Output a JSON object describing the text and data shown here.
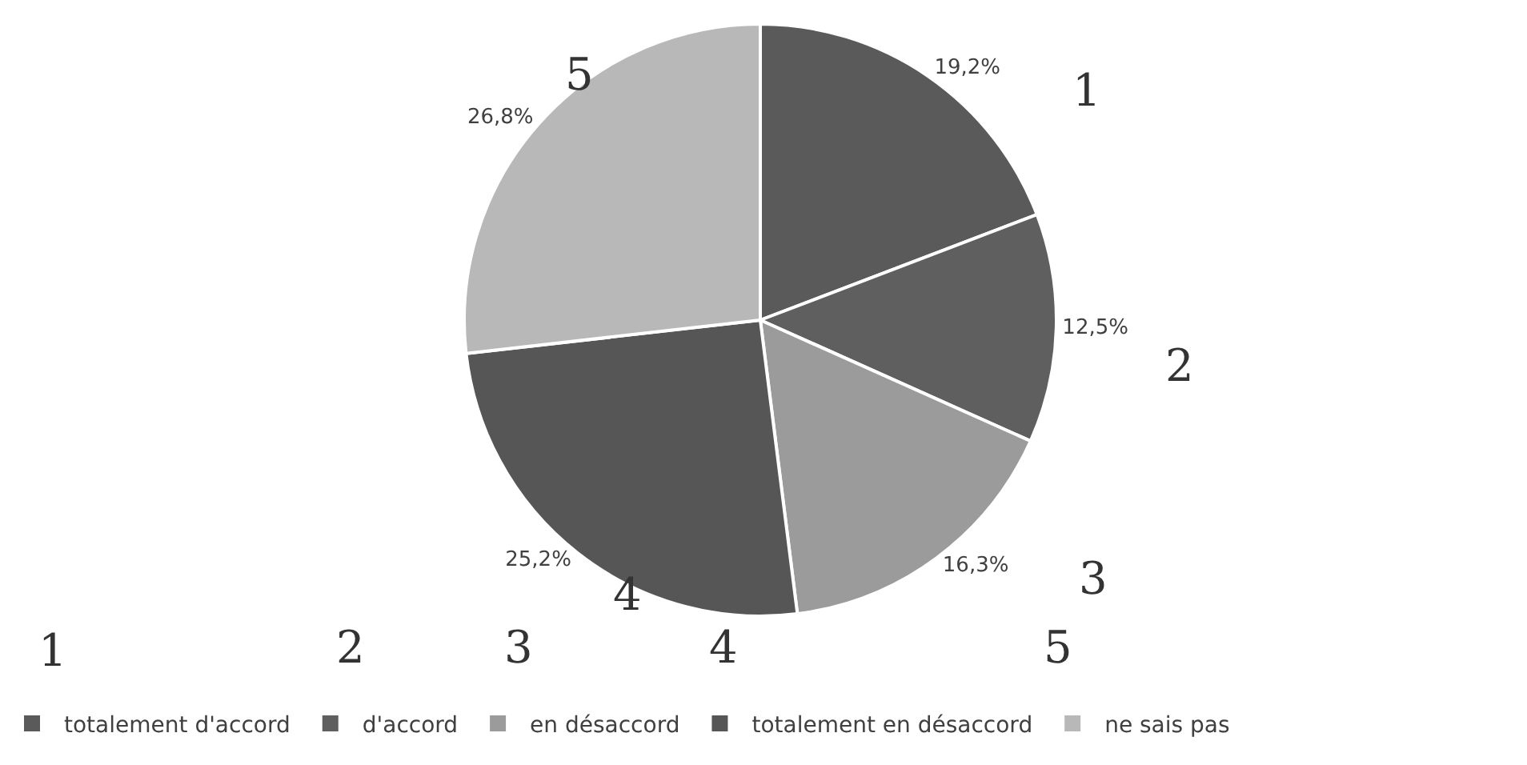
{
  "chart_data": {
    "type": "pie",
    "categories": [
      "totalement d'accord",
      "d'accord",
      "en désaccord",
      "totalement en désaccord",
      "ne sais pas"
    ],
    "values": [
      19.2,
      12.5,
      16.3,
      25.2,
      26.8
    ],
    "value_labels": [
      "19,2%",
      "12,5%",
      "16,3%",
      "25,2%",
      "26,8%"
    ],
    "colors": [
      "#5a5a5a",
      "#5f5f5f",
      "#9b9b9b",
      "#565656",
      "#b8b8b8"
    ],
    "annotations": [
      "1",
      "2",
      "3",
      "4",
      "5",
      "1",
      "2",
      "3",
      "4",
      "5"
    ],
    "legend": "bottom"
  }
}
